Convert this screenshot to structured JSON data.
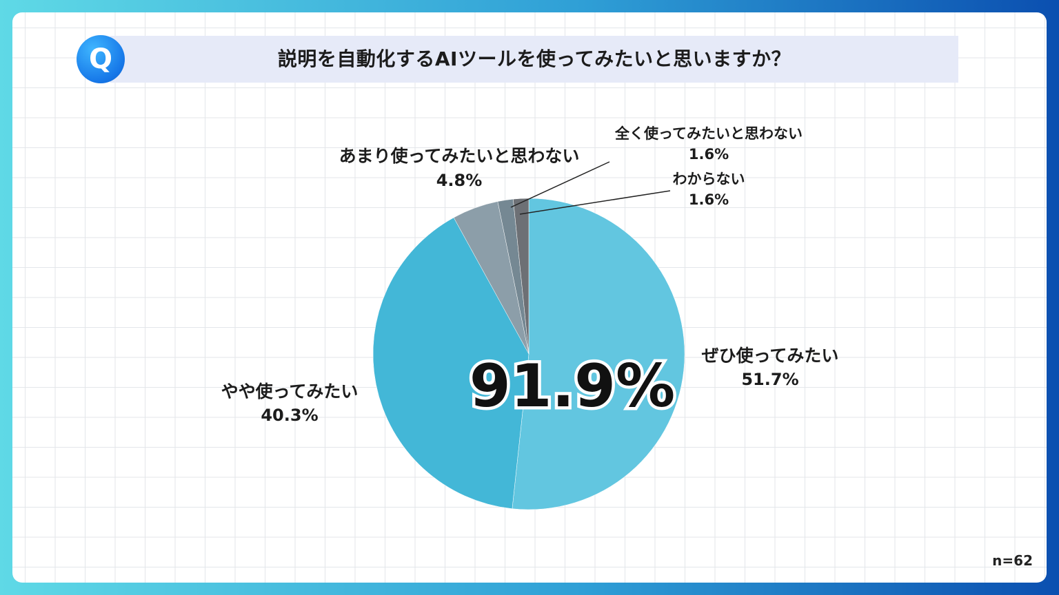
{
  "question_badge": "Q",
  "title": "説明を自動化するAIツールを使ってみたいと思いますか？",
  "sample_size": "n=62",
  "highlight_value": "91.9%",
  "chart_data": {
    "type": "pie",
    "title": "説明を自動化するAIツールを使ってみたいと思いますか？",
    "start_angle_deg": 0,
    "direction": "clockwise",
    "slices": [
      {
        "label": "ぜひ使ってみたい",
        "value": 51.7,
        "value_label": "51.7%",
        "color": "#62c6e0"
      },
      {
        "label": "やや使ってみたい",
        "value": 40.3,
        "value_label": "40.3%",
        "color": "#43b7d7"
      },
      {
        "label": "あまり使ってみたいと思わない",
        "value": 4.8,
        "value_label": "4.8%",
        "color": "#8c9ea9"
      },
      {
        "label": "全く使ってみたいと思わない",
        "value": 1.6,
        "value_label": "1.6%",
        "color": "#758893"
      },
      {
        "label": "わからない",
        "value": 1.6,
        "value_label": "1.6%",
        "color": "#6d7075"
      }
    ]
  }
}
